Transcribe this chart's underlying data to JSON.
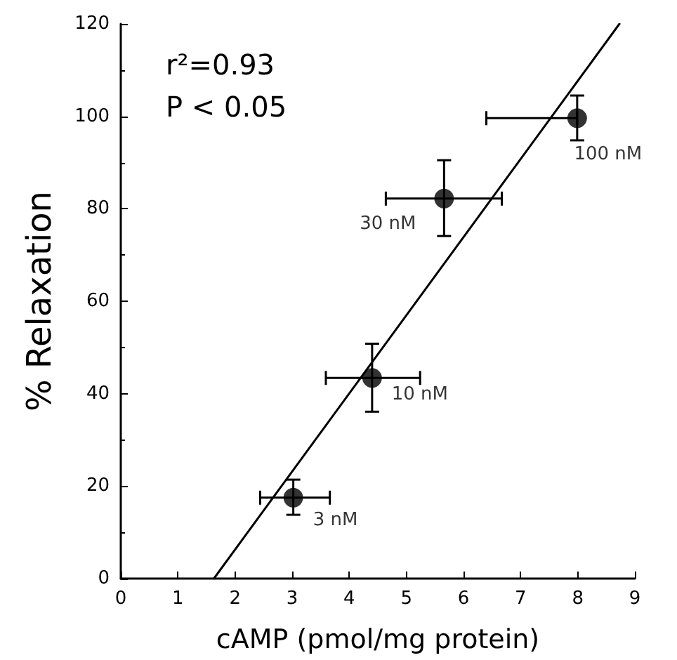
{
  "chart_data": {
    "type": "scatter",
    "xlabel": "cAMP (pmol/mg protein)",
    "ylabel": "% Relaxation",
    "xlim": [
      0,
      9
    ],
    "xticks": [
      0,
      1,
      2,
      3,
      4,
      5,
      6,
      7,
      8,
      9
    ],
    "ylim": [
      0,
      120
    ],
    "yticks": [
      0,
      20,
      40,
      60,
      80,
      100,
      120
    ],
    "grid": false,
    "marker": "circle",
    "series": [
      {
        "color": "#000000",
        "x": [
          3.02,
          4.4,
          5.66,
          7.99
        ],
        "values": [
          17.5,
          43.4,
          82.2,
          99.6
        ],
        "errors": [
          [
            13.8,
            21.4
          ],
          [
            36.1,
            50.8
          ],
          [
            74.1,
            90.5
          ],
          [
            94.8,
            104.5
          ]
        ],
        "xerrors": [
          [
            2.44,
            3.66
          ],
          [
            3.59,
            5.24
          ],
          [
            4.64,
            6.67
          ],
          [
            6.4,
            7.99
          ]
        ]
      },
      {
        "type": "line",
        "color": "#000000",
        "marker": "none",
        "line_style": "solid",
        "x": [
          1.63,
          8.73
        ],
        "values": [
          0,
          120
        ]
      }
    ],
    "annotations": [
      "r²=0.93",
      "P < 0.05",
      {
        "text": "3 nM",
        "x": 3.02,
        "y": 17.5
      },
      {
        "text": "10 nM",
        "x": 4.4,
        "y": 43.4
      },
      {
        "text": "30 nM",
        "x": 5.66,
        "y": 82.2
      },
      {
        "text": "100 nM",
        "x": 7.99,
        "y": 99.6
      }
    ]
  }
}
